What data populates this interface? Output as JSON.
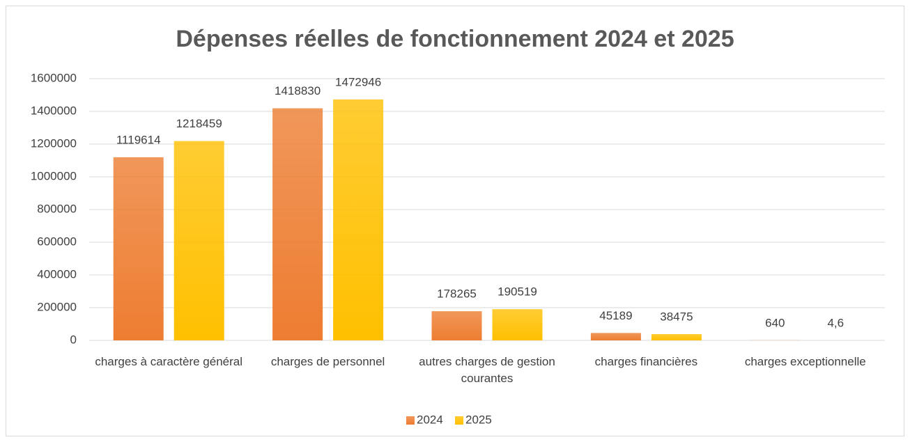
{
  "chart_data": {
    "type": "bar",
    "title": "Dépenses réelles de fonctionnement 2024 et 2025",
    "categories": [
      "charges à caractère général",
      "charges de personnel",
      "autres charges de gestion courantes",
      "charges financières",
      "charges exceptionnelle"
    ],
    "series": [
      {
        "name": "2024",
        "color": "#ed7d31",
        "values": [
          1119614,
          1418830,
          178265,
          45189,
          640
        ]
      },
      {
        "name": "2025",
        "color": "#ffc000",
        "values": [
          1218459,
          1472946,
          190519,
          38475,
          4.6
        ],
        "value_labels": [
          "1218459",
          "1472946",
          "190519",
          "38475",
          "4,6"
        ]
      }
    ],
    "ylim": [
      0,
      1600000
    ],
    "yticks": [
      0,
      200000,
      400000,
      600000,
      800000,
      1000000,
      1200000,
      1400000,
      1600000
    ],
    "grid": true,
    "legend": "bottom"
  }
}
